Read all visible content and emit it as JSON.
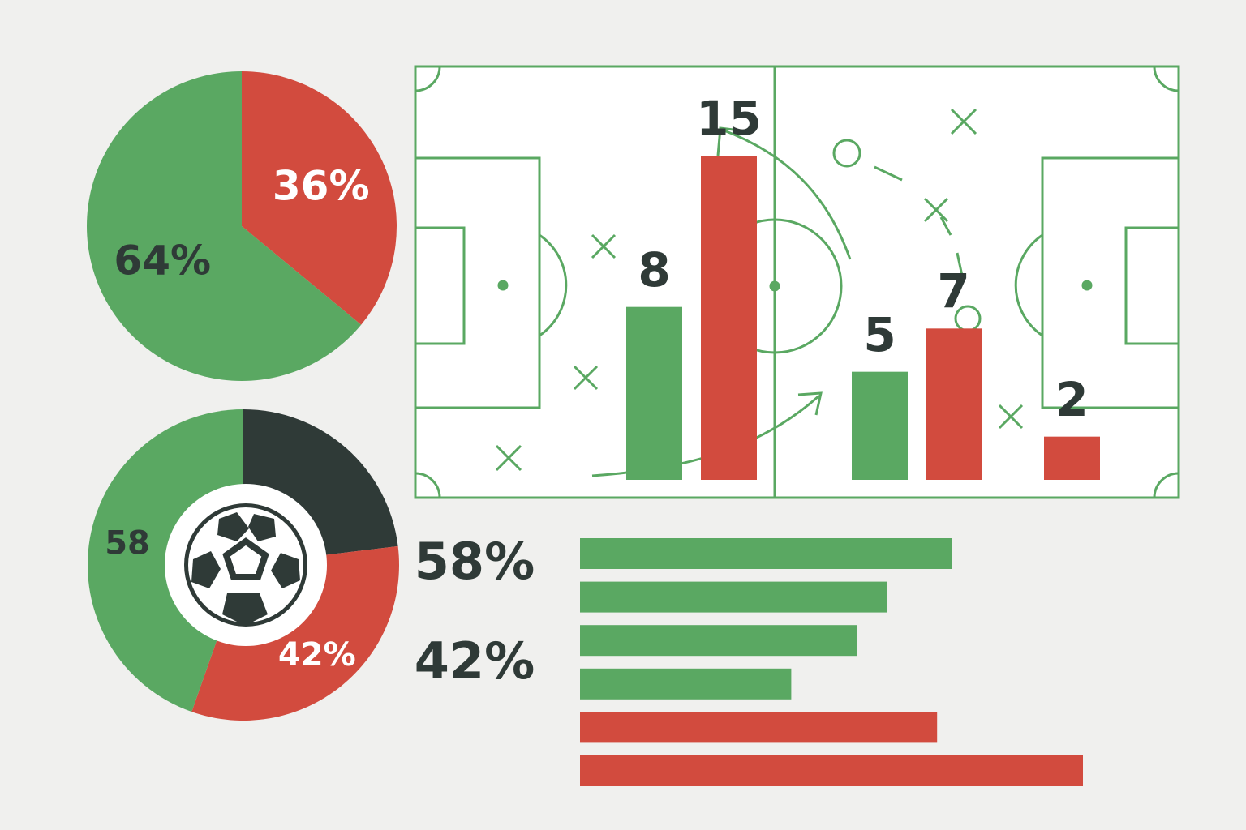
{
  "chart_data": [
    {
      "type": "pie",
      "values": [
        36,
        64
      ],
      "value_labels": [
        "36%",
        "64%"
      ],
      "colors": [
        "#d24b3e",
        "#5aa862"
      ]
    },
    {
      "type": "donut",
      "values": [
        30,
        42,
        58
      ],
      "value_labels": [
        null,
        "42%",
        "58"
      ],
      "colors": [
        "#2f3a37",
        "#d24b3e",
        "#5aa862"
      ],
      "annotations": [
        "58%",
        "42%"
      ]
    },
    {
      "type": "bar",
      "values": [
        8,
        15,
        5,
        7,
        2
      ],
      "colors": [
        "#5aa862",
        "#d24b3e",
        "#5aa862",
        "#d24b3e",
        "#d24b3e"
      ]
    },
    {
      "type": "hbar",
      "values": [
        74,
        61,
        55,
        42,
        71,
        100
      ],
      "colors": [
        "#5aa862",
        "#5aa862",
        "#5aa862",
        "#5aa862",
        "#d24b3e",
        "#d24b3e"
      ]
    }
  ]
}
